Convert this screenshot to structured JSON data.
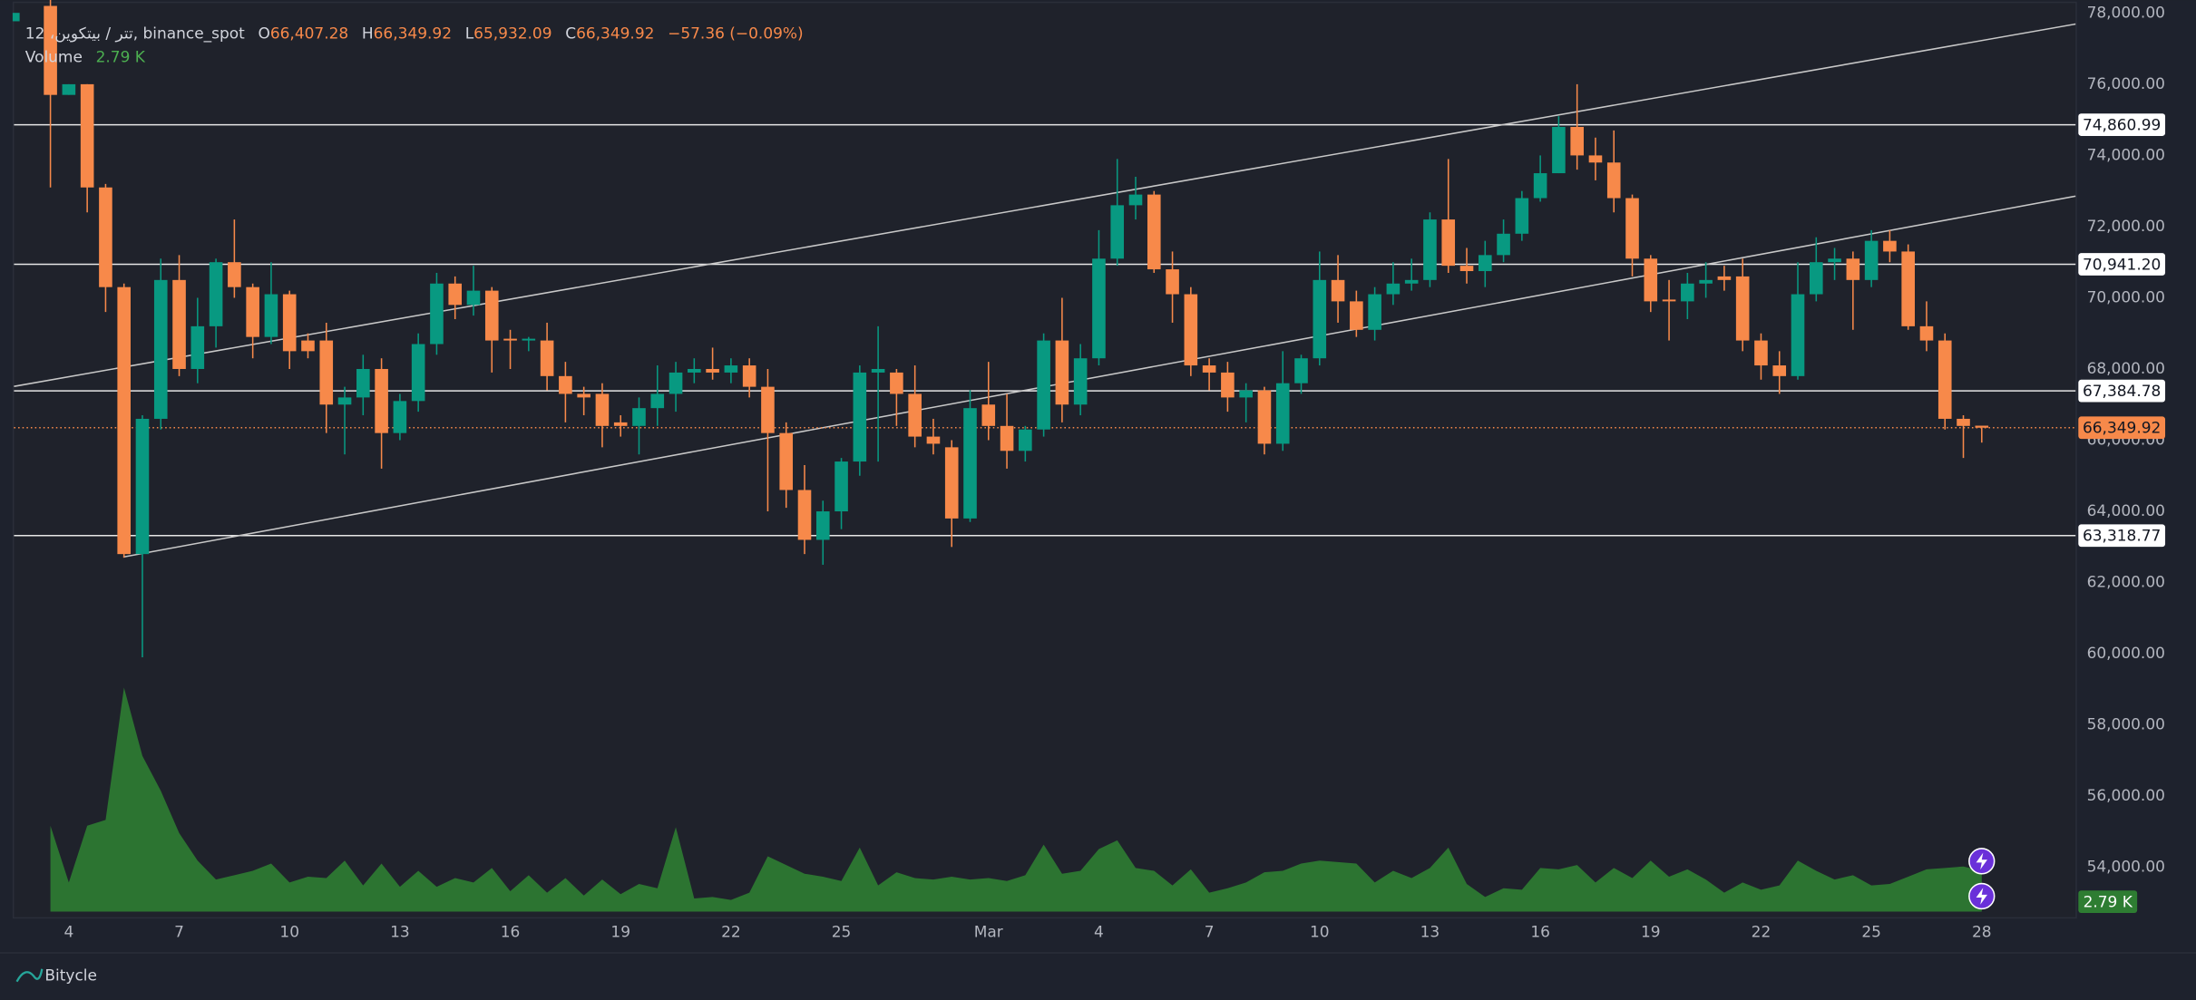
{
  "chart_data": {
    "type": "candlestick",
    "header": {
      "symbol": "12 ،تتر / بيتكوين, binance_spot",
      "fields": [
        {
          "key": "O",
          "value": "66,407.28"
        },
        {
          "key": "H",
          "value": "66,349.92"
        },
        {
          "key": "L",
          "value": "65,932.09"
        },
        {
          "key": "C",
          "value": "66,349.92"
        }
      ],
      "change": "−57.36 (−0.09%)"
    },
    "up_color": "#089981",
    "down_color": "#f7894a",
    "ohlc": [
      [
        78200,
        78500,
        73100,
        75700
      ],
      [
        75700,
        76000,
        75700,
        76000
      ],
      [
        76000,
        76000,
        72400,
        73100
      ],
      [
        73100,
        73200,
        69600,
        70300
      ],
      [
        70300,
        70400,
        62700,
        62800
      ],
      [
        62800,
        66700,
        59900,
        66600
      ],
      [
        66600,
        71100,
        66300,
        70500
      ],
      [
        70500,
        71200,
        67800,
        68000
      ],
      [
        68000,
        70000,
        67600,
        69200
      ],
      [
        69200,
        71100,
        68600,
        71000
      ],
      [
        71000,
        72200,
        70000,
        70300
      ],
      [
        70300,
        70400,
        68300,
        68900
      ],
      [
        68900,
        71000,
        68700,
        70100
      ],
      [
        70100,
        70200,
        68000,
        68500
      ],
      [
        68800,
        69000,
        68300,
        68500
      ],
      [
        68800,
        69300,
        66200,
        67000
      ],
      [
        67000,
        67500,
        65600,
        67200
      ],
      [
        67200,
        68400,
        66700,
        68000
      ],
      [
        68000,
        68300,
        65200,
        66200
      ],
      [
        66200,
        67300,
        66000,
        67100
      ],
      [
        67100,
        69000,
        66800,
        68700
      ],
      [
        68700,
        70700,
        68400,
        70400
      ],
      [
        70400,
        70600,
        69400,
        69800
      ],
      [
        69800,
        70900,
        69500,
        70200
      ],
      [
        70200,
        70300,
        67900,
        68800
      ],
      [
        68850,
        69100,
        68000,
        68800
      ],
      [
        68800,
        68900,
        68500,
        68850
      ],
      [
        68800,
        69300,
        67400,
        67800
      ],
      [
        67800,
        68200,
        66500,
        67300
      ],
      [
        67300,
        67500,
        66700,
        67200
      ],
      [
        67300,
        67600,
        65800,
        66400
      ],
      [
        66500,
        66700,
        66100,
        66400
      ],
      [
        66400,
        67200,
        65600,
        66900
      ],
      [
        66900,
        68100,
        66400,
        67300
      ],
      [
        67300,
        68200,
        66800,
        67900
      ],
      [
        67900,
        68300,
        67600,
        68000
      ],
      [
        68000,
        68600,
        67700,
        67900
      ],
      [
        67900,
        68300,
        67600,
        68100
      ],
      [
        68100,
        68300,
        67200,
        67500
      ],
      [
        67500,
        68000,
        64000,
        66200
      ],
      [
        66200,
        66500,
        64100,
        64600
      ],
      [
        64600,
        65300,
        62800,
        63200
      ],
      [
        63200,
        64300,
        62500,
        64000
      ],
      [
        64000,
        65500,
        63500,
        65400
      ],
      [
        65400,
        68100,
        65000,
        67900
      ],
      [
        67900,
        69200,
        65400,
        68000
      ],
      [
        67900,
        68000,
        66400,
        67300
      ],
      [
        67300,
        68100,
        65800,
        66100
      ],
      [
        66100,
        66600,
        65600,
        65900
      ],
      [
        65800,
        66000,
        63000,
        63800
      ],
      [
        63800,
        67400,
        63700,
        66900
      ],
      [
        67000,
        68200,
        66000,
        66400
      ],
      [
        66400,
        67300,
        65200,
        65700
      ],
      [
        65700,
        66400,
        65400,
        66300
      ],
      [
        66300,
        69000,
        66100,
        68800
      ],
      [
        68800,
        70000,
        66500,
        67000
      ],
      [
        67000,
        68700,
        66700,
        68300
      ],
      [
        68300,
        71900,
        68100,
        71100
      ],
      [
        71100,
        73900,
        70900,
        72600
      ],
      [
        72600,
        73400,
        72200,
        72900
      ],
      [
        72900,
        73000,
        70700,
        70800
      ],
      [
        70800,
        71300,
        69300,
        70100
      ],
      [
        70100,
        70300,
        67800,
        68100
      ],
      [
        68100,
        68300,
        67400,
        67900
      ],
      [
        67900,
        68200,
        66800,
        67200
      ],
      [
        67200,
        67600,
        66500,
        67400
      ],
      [
        67400,
        67500,
        65600,
        65900
      ],
      [
        65900,
        68500,
        65700,
        67600
      ],
      [
        67600,
        68400,
        67300,
        68300
      ],
      [
        68300,
        71300,
        68100,
        70500
      ],
      [
        70500,
        71200,
        69300,
        69900
      ],
      [
        69900,
        70200,
        68900,
        69100
      ],
      [
        69100,
        70300,
        68800,
        70100
      ],
      [
        70100,
        71000,
        69800,
        70400
      ],
      [
        70400,
        71100,
        70200,
        70500
      ],
      [
        70500,
        72400,
        70300,
        72200
      ],
      [
        72200,
        73900,
        70700,
        70900
      ],
      [
        70900,
        71400,
        70400,
        70750
      ],
      [
        70750,
        71600,
        70300,
        71200
      ],
      [
        71200,
        72200,
        71000,
        71800
      ],
      [
        71800,
        73000,
        71600,
        72800
      ],
      [
        72800,
        74000,
        72700,
        73500
      ],
      [
        73500,
        75100,
        73500,
        74800
      ],
      [
        74800,
        76000,
        73600,
        74000
      ],
      [
        74000,
        74500,
        73300,
        73800
      ],
      [
        73800,
        74700,
        72400,
        72800
      ],
      [
        72800,
        72900,
        70600,
        71100
      ],
      [
        71100,
        71200,
        69600,
        69900
      ],
      [
        69950,
        70500,
        68800,
        69900
      ],
      [
        69900,
        70700,
        69400,
        70400
      ],
      [
        70400,
        71000,
        70000,
        70500
      ],
      [
        70600,
        70900,
        70200,
        70500
      ],
      [
        70600,
        71100,
        68500,
        68800
      ],
      [
        68800,
        69000,
        67700,
        68100
      ],
      [
        68100,
        68500,
        67300,
        67800
      ],
      [
        67800,
        71000,
        67700,
        70100
      ],
      [
        70100,
        71700,
        69900,
        71000
      ],
      [
        71000,
        71400,
        70500,
        71100
      ],
      [
        71100,
        71300,
        69100,
        70500
      ],
      [
        70500,
        71900,
        70300,
        71600
      ],
      [
        71600,
        71900,
        71000,
        71300
      ],
      [
        71300,
        71500,
        69100,
        69200
      ],
      [
        69200,
        69900,
        68500,
        68800
      ],
      [
        68800,
        69000,
        66300,
        66600
      ],
      [
        66600,
        66700,
        65500,
        66400
      ],
      [
        66407.28,
        66349.92,
        65932.09,
        66349.92
      ]
    ],
    "volume": {
      "name": "Volume",
      "color": "#2e7d32",
      "last_label": "2.79 K",
      "values": [
        5.9,
        2.0,
        5.9,
        6.3,
        15.4,
        10.7,
        8.3,
        5.4,
        3.5,
        2.2,
        2.5,
        2.8,
        3.3,
        2.0,
        2.4,
        2.3,
        3.5,
        1.8,
        3.3,
        1.7,
        2.8,
        1.7,
        2.3,
        2.0,
        3.0,
        1.4,
        2.5,
        1.3,
        2.3,
        1.1,
        2.2,
        1.2,
        1.9,
        1.6,
        5.8,
        0.9,
        1.0,
        0.8,
        1.3,
        3.8,
        3.2,
        2.6,
        2.4,
        2.1,
        4.4,
        1.8,
        2.7,
        2.3,
        2.2,
        2.4,
        2.2,
        2.3,
        2.1,
        2.5,
        4.6,
        2.6,
        2.8,
        4.3,
        4.9,
        3.0,
        2.8,
        1.8,
        2.9,
        1.3,
        1.6,
        2.0,
        2.7,
        2.8,
        3.3,
        3.5,
        3.4,
        3.3,
        2.0,
        2.8,
        2.3,
        3.0,
        4.4,
        1.9,
        1.0,
        1.6,
        1.5,
        3.0,
        2.9,
        3.2,
        2.0,
        3.0,
        2.3,
        3.5,
        2.4,
        2.9,
        2.2,
        1.3,
        2.0,
        1.5,
        1.8,
        3.5,
        2.8,
        2.2,
        2.5,
        1.8,
        1.9,
        2.4,
        2.9,
        3.0,
        3.1,
        2.79
      ]
    },
    "xlim": [
      -1.98,
      110.1
    ],
    "ylim": [
      52600,
      78280
    ],
    "yticks": [
      {
        "value": 54000,
        "label": "54,000.00"
      },
      {
        "value": 56000,
        "label": "56,000.00"
      },
      {
        "value": 58000,
        "label": "58,000.00"
      },
      {
        "value": 60000,
        "label": "60,000.00"
      },
      {
        "value": 62000,
        "label": "62,000.00"
      },
      {
        "value": 64000,
        "label": "64,000.00"
      },
      {
        "value": 66000,
        "label": "66,000.00"
      },
      {
        "value": 68000,
        "label": "68,000.00"
      },
      {
        "value": 70000,
        "label": "70,000.00"
      },
      {
        "value": 72000,
        "label": "72,000.00"
      },
      {
        "value": 74000,
        "label": "74,000.00"
      },
      {
        "value": 76000,
        "label": "76,000.00"
      },
      {
        "value": 78000,
        "label": "78,000.00"
      }
    ],
    "xticks": [
      {
        "value": 1,
        "label": "4"
      },
      {
        "value": 7,
        "label": "7"
      },
      {
        "value": 13,
        "label": "10"
      },
      {
        "value": 19,
        "label": "13"
      },
      {
        "value": 25,
        "label": "16"
      },
      {
        "value": 31,
        "label": "19"
      },
      {
        "value": 37,
        "label": "22"
      },
      {
        "value": 43,
        "label": "25"
      },
      {
        "value": 51,
        "label": "Mar"
      },
      {
        "value": 57,
        "label": "4"
      },
      {
        "value": 63,
        "label": "7"
      },
      {
        "value": 69,
        "label": "10"
      },
      {
        "value": 75,
        "label": "13"
      },
      {
        "value": 81,
        "label": "16"
      },
      {
        "value": 87,
        "label": "19"
      },
      {
        "value": 93,
        "label": "22"
      },
      {
        "value": 99,
        "label": "25"
      },
      {
        "value": 105,
        "label": "28"
      }
    ],
    "grid": false,
    "price_lines": [
      {
        "value": 74860.99,
        "label": "74,860.99"
      },
      {
        "value": 70941.2,
        "label": "70,941.20"
      },
      {
        "value": 67384.78,
        "label": "67,384.78"
      },
      {
        "value": 63318.77,
        "label": "63,318.77"
      }
    ],
    "last_price": {
      "value": 66349.92,
      "label": "66,349.92",
      "color": "#f7894a"
    },
    "trend_lines": [
      {
        "from": [
          -1.98,
          67511
        ],
        "to": [
          110.1,
          77690
        ]
      },
      {
        "from": [
          3.96,
          62717
        ],
        "to": [
          110.1,
          72856
        ]
      }
    ],
    "footer": "Bitycle"
  }
}
